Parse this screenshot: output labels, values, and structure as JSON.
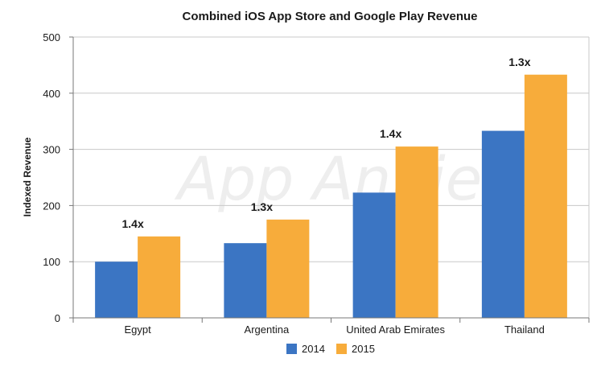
{
  "chart_data": {
    "type": "bar",
    "title": "Combined iOS App Store and Google Play Revenue",
    "ylabel": "Indexed Revenue",
    "xlabel": "",
    "categories": [
      "Egypt",
      "Argentina",
      "United Arab Emirates",
      "Thailand"
    ],
    "series": [
      {
        "name": "2014",
        "values": [
          100,
          133,
          223,
          333
        ]
      },
      {
        "name": "2015",
        "values": [
          145,
          175,
          305,
          433
        ]
      }
    ],
    "annotations": [
      "1.4x",
      "1.3x",
      "1.4x",
      "1.3x"
    ],
    "ylim": [
      0,
      500
    ],
    "yticks": [
      0,
      100,
      200,
      300,
      400,
      500
    ],
    "grid": true,
    "legend": "bottom-center",
    "watermark": "App Annie",
    "colors": {
      "2014": "#3b75c3",
      "2015": "#f7ac3b",
      "grid": "#c8c8c8"
    }
  }
}
